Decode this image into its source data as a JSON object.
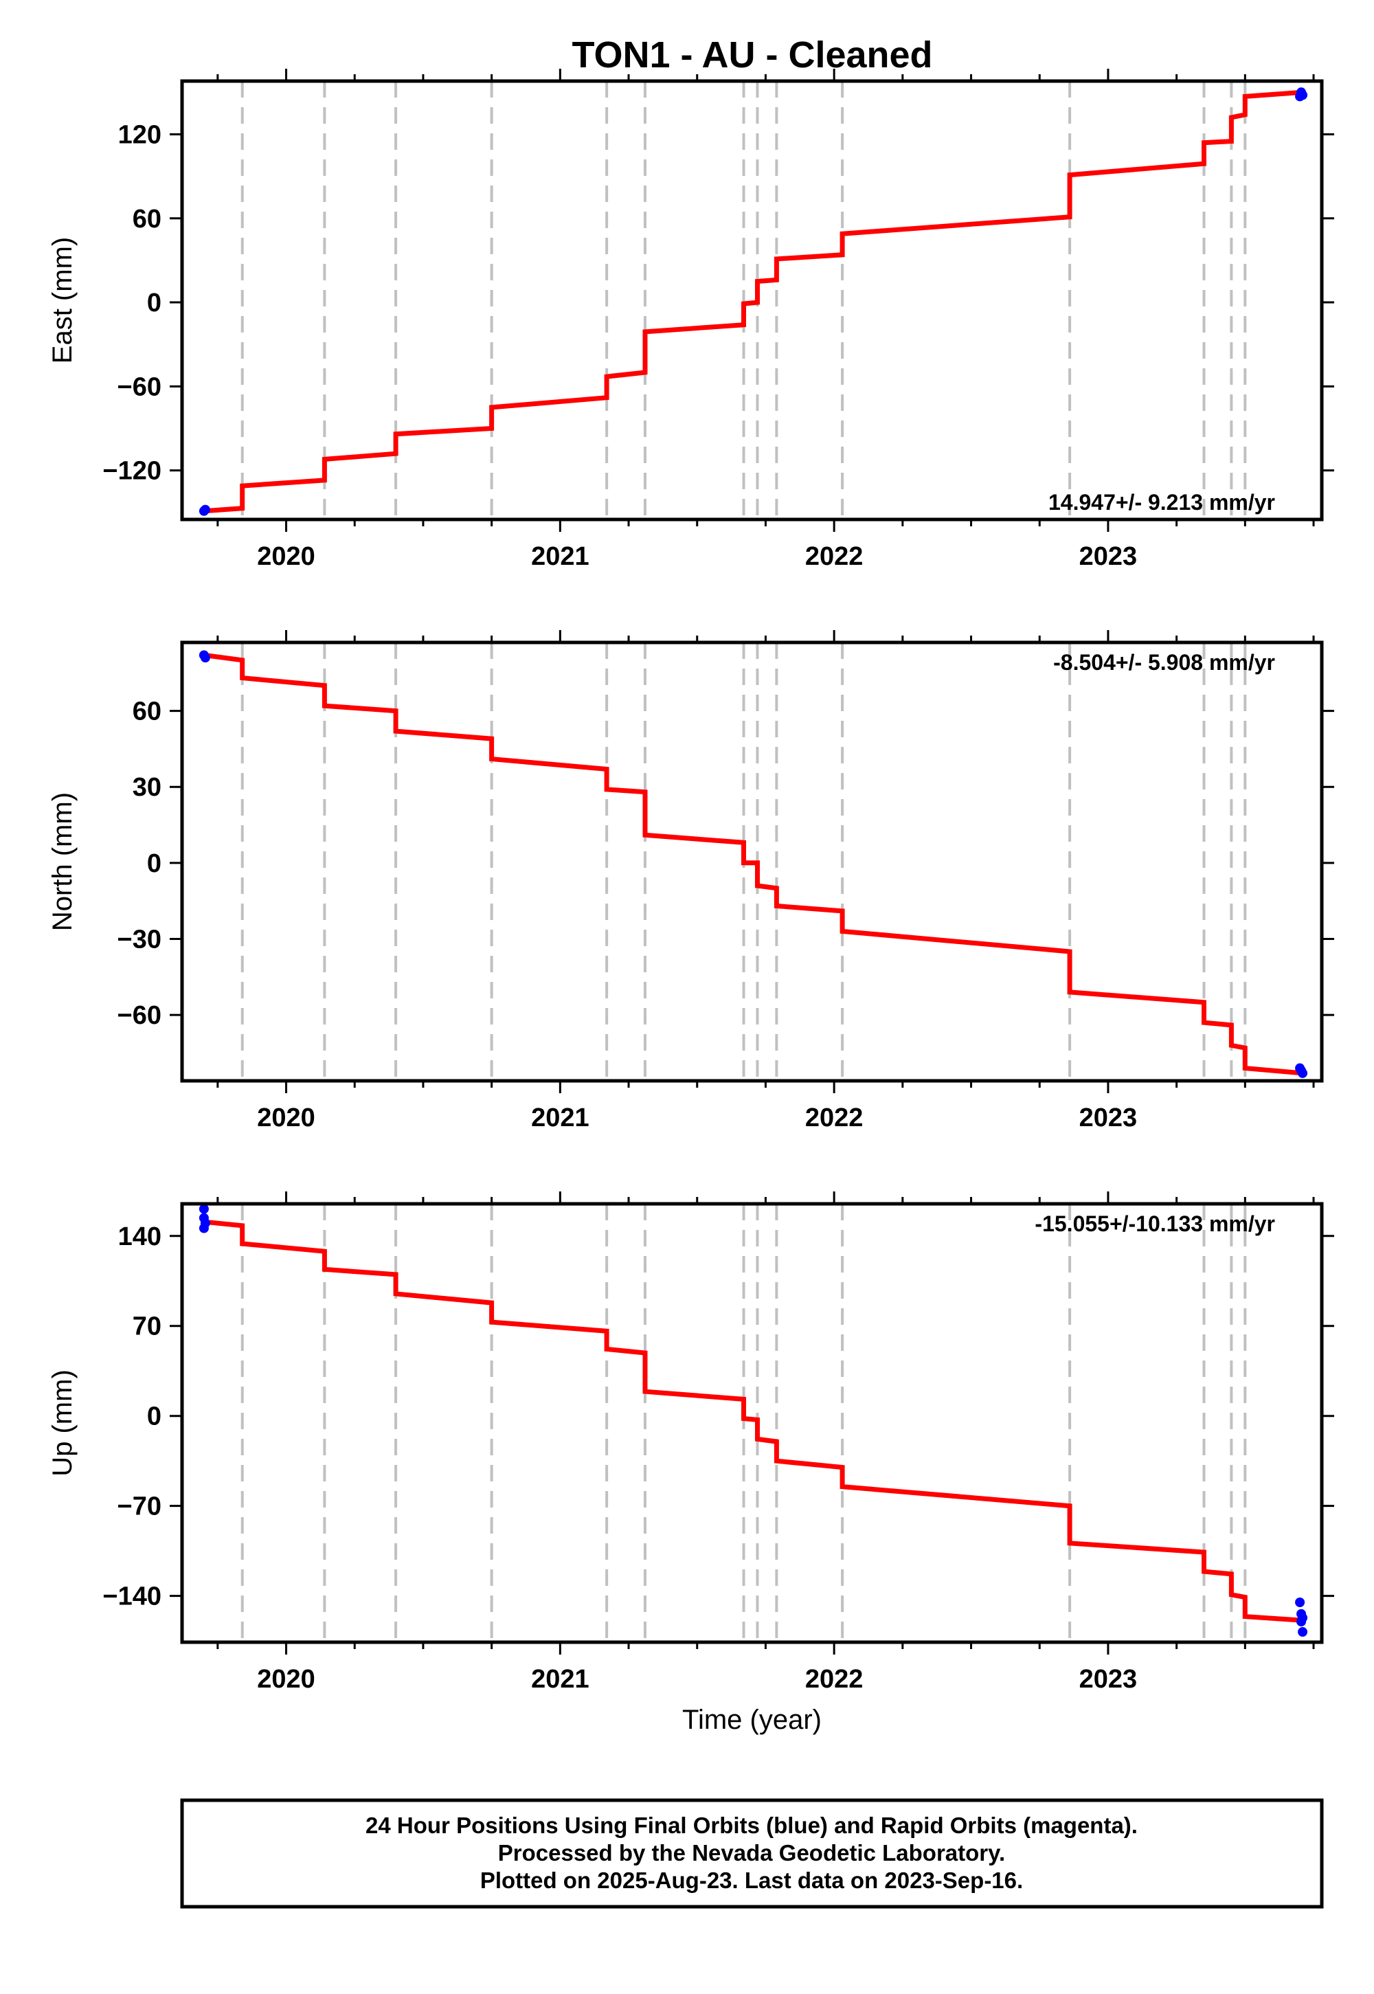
{
  "title": "TON1  - AU - Cleaned",
  "footer": {
    "line1": "24 Hour Positions Using Final Orbits (blue) and Rapid Orbits (magenta).",
    "line2": "Processed by the Nevada Geodetic Laboratory.",
    "line3": "Plotted on 2025-Aug-23. Last data on 2023-Sep-16."
  },
  "colors": {
    "model": "#ff0000",
    "final_orbits": "#0000ff",
    "rapid_orbits": "#ff00ff",
    "steps": "#c0c0c0",
    "frame": "#000000"
  },
  "chart_data": [
    {
      "type": "line",
      "xlabel": "",
      "ylabel": "East (mm)",
      "xlim": [
        2019.62,
        2023.78
      ],
      "ylim": [
        -155,
        158
      ],
      "xticks": [
        "2020",
        "2021",
        "2022",
        "2023"
      ],
      "yticks": [
        "-120",
        "-60",
        "0",
        "60",
        "120"
      ],
      "grid": false,
      "rate_label": "14.947+/- 9.213 mm/yr",
      "rate_position": "bottom-right",
      "step_epochs": [
        2019.84,
        2020.14,
        2020.4,
        2020.75,
        2021.17,
        2021.31,
        2021.67,
        2021.72,
        2021.79,
        2022.03,
        2022.86,
        2023.35,
        2023.45,
        2023.5
      ],
      "series": [
        {
          "type": "line",
          "color": "#ff0000",
          "x": [
            2019.7,
            2019.84,
            2019.84,
            2020.14,
            2020.14,
            2020.4,
            2020.4,
            2020.75,
            2020.75,
            2021.17,
            2021.17,
            2021.31,
            2021.31,
            2021.67,
            2021.67,
            2021.72,
            2021.72,
            2021.79,
            2021.79,
            2022.03,
            2022.03,
            2022.86,
            2022.86,
            2023.35,
            2023.35,
            2023.45,
            2023.45,
            2023.5,
            2023.5,
            2023.71
          ],
          "y": [
            -149,
            -147,
            -131,
            -127,
            -112,
            -108,
            -94,
            -90,
            -75,
            -68,
            -53,
            -50,
            -21,
            -16,
            -1,
            0,
            15,
            16,
            31,
            34,
            49,
            61,
            91,
            99,
            114,
            115,
            132,
            134,
            147,
            150
          ]
        },
        {
          "type": "scatter",
          "color": "#0000ff",
          "x": [
            2019.7,
            2019.705,
            2023.7,
            2023.705,
            2023.71
          ],
          "y": [
            -149,
            -148,
            147,
            150,
            148
          ]
        }
      ]
    },
    {
      "type": "line",
      "xlabel": "",
      "ylabel": "North (mm)",
      "xlim": [
        2019.62,
        2023.78
      ],
      "ylim": [
        -86,
        87
      ],
      "xticks": [
        "2020",
        "2021",
        "2022",
        "2023"
      ],
      "yticks": [
        "-60",
        "-30",
        "0",
        "30",
        "60"
      ],
      "grid": false,
      "rate_label": "-8.504+/- 5.908 mm/yr",
      "rate_position": "top-right",
      "step_epochs": [
        2019.84,
        2020.14,
        2020.4,
        2020.75,
        2021.17,
        2021.31,
        2021.67,
        2021.72,
        2021.79,
        2022.03,
        2022.86,
        2023.35,
        2023.45,
        2023.5
      ],
      "series": [
        {
          "type": "line",
          "color": "#ff0000",
          "x": [
            2019.7,
            2019.84,
            2019.84,
            2020.14,
            2020.14,
            2020.4,
            2020.4,
            2020.75,
            2020.75,
            2021.17,
            2021.17,
            2021.31,
            2021.31,
            2021.67,
            2021.67,
            2021.72,
            2021.72,
            2021.79,
            2021.79,
            2022.03,
            2022.03,
            2022.86,
            2022.86,
            2023.35,
            2023.35,
            2023.45,
            2023.45,
            2023.5,
            2023.5,
            2023.71
          ],
          "y": [
            82,
            80,
            73,
            70,
            62,
            60,
            52,
            49,
            41,
            37,
            29,
            28,
            11,
            8,
            0,
            0,
            -9,
            -10,
            -17,
            -19,
            -27,
            -35,
            -51,
            -55,
            -63,
            -64,
            -72,
            -73,
            -81,
            -83
          ]
        },
        {
          "type": "scatter",
          "color": "#0000ff",
          "x": [
            2019.7,
            2019.705,
            2023.7,
            2023.705,
            2023.71
          ],
          "y": [
            82,
            81,
            -81,
            -82,
            -83
          ]
        }
      ]
    },
    {
      "type": "line",
      "xlabel": "Time (year)",
      "ylabel": "Up (mm)",
      "xlim": [
        2019.62,
        2023.78
      ],
      "ylim": [
        -176,
        165
      ],
      "xticks": [
        "2020",
        "2021",
        "2022",
        "2023"
      ],
      "yticks": [
        "-140",
        "-70",
        "0",
        "70",
        "140"
      ],
      "grid": false,
      "rate_label": "-15.055+/-10.133 mm/yr",
      "rate_position": "top-right",
      "step_epochs": [
        2019.84,
        2020.14,
        2020.4,
        2020.75,
        2021.17,
        2021.31,
        2021.67,
        2021.72,
        2021.79,
        2022.03,
        2022.86,
        2023.35,
        2023.45,
        2023.5
      ],
      "series": [
        {
          "type": "line",
          "color": "#ff0000",
          "x": [
            2019.7,
            2019.84,
            2019.84,
            2020.14,
            2020.14,
            2020.4,
            2020.4,
            2020.75,
            2020.75,
            2021.17,
            2021.17,
            2021.31,
            2021.31,
            2021.67,
            2021.67,
            2021.72,
            2021.72,
            2021.79,
            2021.79,
            2022.03,
            2022.03,
            2022.86,
            2022.86,
            2023.35,
            2023.35,
            2023.45,
            2023.45,
            2023.5,
            2023.5,
            2023.71
          ],
          "y": [
            151,
            148,
            134,
            128,
            114,
            110,
            95,
            88,
            73,
            66,
            52,
            49,
            19,
            13,
            -2,
            -3,
            -18,
            -20,
            -35,
            -40,
            -55,
            -70,
            -99,
            -106,
            -121,
            -123,
            -139,
            -141,
            -156,
            -159
          ]
        },
        {
          "type": "scatter",
          "color": "#0000ff",
          "x": [
            2019.7,
            2019.7,
            2019.7,
            2019.705,
            2023.7,
            2023.705,
            2023.705,
            2023.71,
            2023.71
          ],
          "y": [
            161,
            154,
            146,
            150,
            -145,
            -154,
            -160,
            -168,
            -157
          ]
        }
      ]
    }
  ]
}
